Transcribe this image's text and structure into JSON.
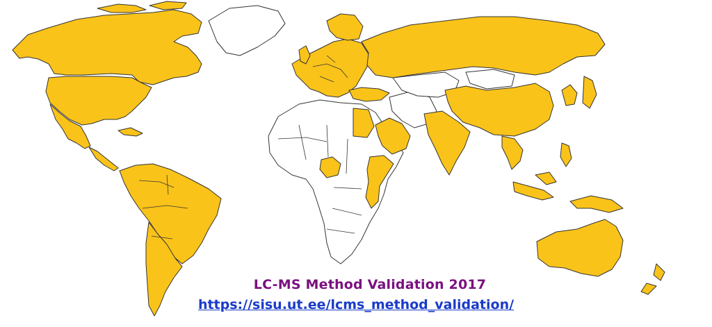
{
  "map": {
    "highlight_color": "#FAC31A",
    "base_color": "#FFFFFF",
    "border_color": "#333333"
  },
  "caption": {
    "title": "LC-MS Method Validation  2017",
    "title_color": "#7B1080",
    "url": "https://sisu.ut.ee/lcms_method_validation/",
    "url_color": "#1A3BC8"
  }
}
